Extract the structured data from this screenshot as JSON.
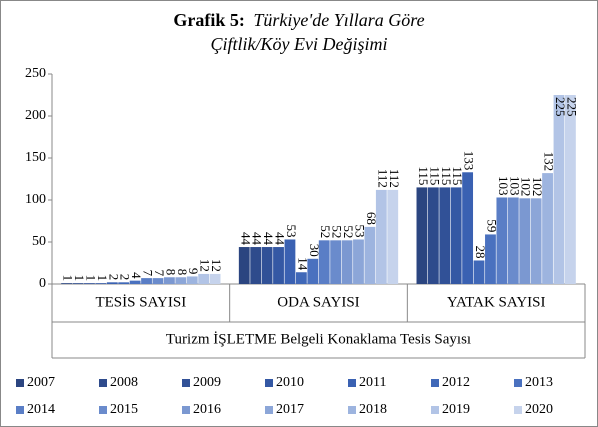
{
  "chart_data": {
    "type": "bar",
    "title": "Grafik  5:",
    "subtitle": [
      "Türkiye'de Yıllara Göre",
      "Çiftlik/Köy Evi Değişimi"
    ],
    "categories": [
      "TESİS SAYISI",
      "ODA SAYISI",
      "YATAK SAYISI"
    ],
    "xlabel": "Turizm İŞLETME Belgeli Konaklama Tesis Sayısı",
    "ylim": [
      0,
      250
    ],
    "yticks": [
      0,
      50,
      100,
      150,
      200,
      250
    ],
    "series": [
      {
        "name": "2007",
        "color": "#2b4580",
        "values": [
          1,
          44,
          115
        ]
      },
      {
        "name": "2008",
        "color": "#2e4b8c",
        "values": [
          1,
          44,
          115
        ]
      },
      {
        "name": "2009",
        "color": "#315197",
        "values": [
          1,
          44,
          115
        ]
      },
      {
        "name": "2010",
        "color": "#3458a4",
        "values": [
          1,
          44,
          115
        ]
      },
      {
        "name": "2011",
        "color": "#3a61b2",
        "values": [
          2,
          53,
          133
        ]
      },
      {
        "name": "2012",
        "color": "#4068b8",
        "values": [
          2,
          14,
          28
        ]
      },
      {
        "name": "2013",
        "color": "#4a71bf",
        "values": [
          4,
          30,
          59
        ]
      },
      {
        "name": "2014",
        "color": "#5a7ec6",
        "values": [
          7,
          52,
          103
        ]
      },
      {
        "name": "2015",
        "color": "#6a8bcc",
        "values": [
          7,
          52,
          103
        ]
      },
      {
        "name": "2016",
        "color": "#7b98d1",
        "values": [
          8,
          52,
          102
        ]
      },
      {
        "name": "2017",
        "color": "#8ca6d8",
        "values": [
          8,
          53,
          102
        ]
      },
      {
        "name": "2018",
        "color": "#9db4df",
        "values": [
          9,
          68,
          132
        ]
      },
      {
        "name": "2019",
        "color": "#b2c4e6",
        "values": [
          12,
          112,
          225
        ]
      },
      {
        "name": "2020",
        "color": "#c6d3ec",
        "values": [
          12,
          112,
          225
        ]
      }
    ]
  }
}
